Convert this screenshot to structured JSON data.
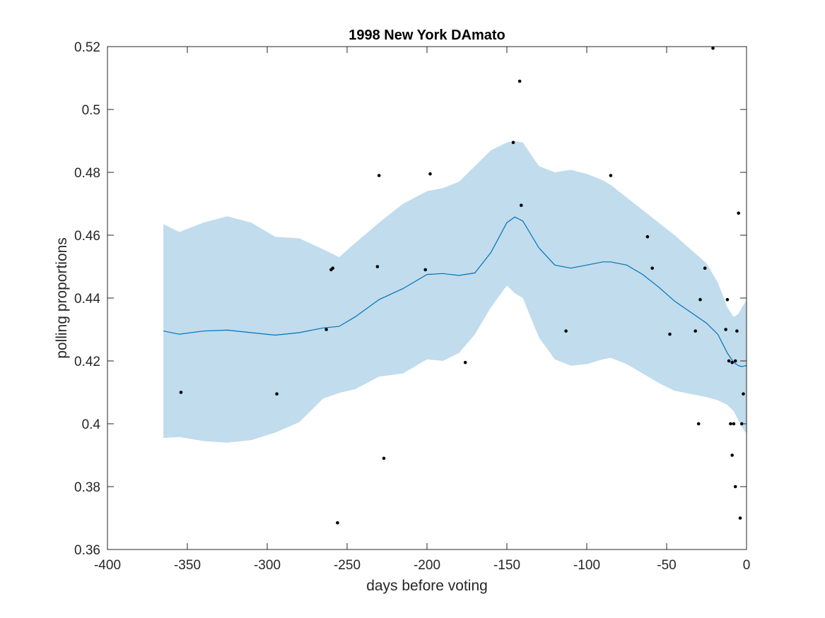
{
  "chart_data": {
    "type": "line",
    "title": "1998 New York DAmato",
    "xlabel": "days before voting",
    "ylabel": "polling proportions",
    "xlim": [
      -400,
      0
    ],
    "ylim": [
      0.36,
      0.52
    ],
    "xticks": [
      -400,
      -350,
      -300,
      -250,
      -200,
      -150,
      -100,
      -50,
      0
    ],
    "xtick_labels": [
      "-400",
      "-350",
      "-300",
      "-250",
      "-200",
      "-150",
      "-100",
      "-50",
      "0"
    ],
    "yticks": [
      0.36,
      0.38,
      0.4,
      0.42,
      0.44,
      0.46,
      0.48,
      0.5,
      0.52
    ],
    "ytick_labels": [
      "0.36",
      "0.38",
      "0.4",
      "0.42",
      "0.44",
      "0.46",
      "0.48",
      "0.5",
      "0.52"
    ],
    "grid": false,
    "colors": {
      "line": "#0072bd",
      "band": "#c1dcec",
      "points": "#000000",
      "axes": "#262626"
    },
    "trend": {
      "x": [
        -365,
        -355,
        -340,
        -325,
        -310,
        -295,
        -280,
        -265,
        -255,
        -245,
        -230,
        -215,
        -200,
        -190,
        -180,
        -170,
        -160,
        -150,
        -145,
        -140,
        -130,
        -120,
        -110,
        -100,
        -90,
        -85,
        -75,
        -65,
        -55,
        -45,
        -35,
        -25,
        -18,
        -12,
        -8,
        -5,
        -3,
        -1,
        0
      ],
      "y": [
        0.4295,
        0.4285,
        0.4295,
        0.4298,
        0.429,
        0.4282,
        0.429,
        0.4305,
        0.431,
        0.434,
        0.4395,
        0.443,
        0.4475,
        0.4478,
        0.4472,
        0.448,
        0.4545,
        0.464,
        0.4658,
        0.4645,
        0.456,
        0.4505,
        0.4495,
        0.4505,
        0.4515,
        0.4515,
        0.4505,
        0.4475,
        0.4435,
        0.439,
        0.4355,
        0.432,
        0.4285,
        0.4225,
        0.4195,
        0.4185,
        0.4182,
        0.4184,
        0.4186
      ]
    },
    "band": {
      "x": [
        -365,
        -355,
        -340,
        -325,
        -310,
        -295,
        -280,
        -265,
        -255,
        -245,
        -230,
        -215,
        -200,
        -190,
        -180,
        -170,
        -160,
        -150,
        -145,
        -140,
        -130,
        -120,
        -110,
        -100,
        -90,
        -85,
        -75,
        -65,
        -55,
        -45,
        -35,
        -25,
        -18,
        -12,
        -8,
        -5,
        -3,
        -1,
        0
      ],
      "upper": [
        0.4635,
        0.461,
        0.464,
        0.466,
        0.464,
        0.4595,
        0.459,
        0.4555,
        0.453,
        0.4575,
        0.464,
        0.47,
        0.474,
        0.475,
        0.477,
        0.482,
        0.487,
        0.4895,
        0.49,
        0.4895,
        0.482,
        0.48,
        0.4808,
        0.4795,
        0.4775,
        0.476,
        0.472,
        0.468,
        0.464,
        0.46,
        0.4555,
        0.451,
        0.445,
        0.437,
        0.434,
        0.435,
        0.437,
        0.4385,
        0.4395
      ],
      "lower": [
        0.3955,
        0.3958,
        0.3945,
        0.394,
        0.3948,
        0.3972,
        0.4005,
        0.408,
        0.4098,
        0.411,
        0.415,
        0.416,
        0.4205,
        0.42,
        0.4225,
        0.4285,
        0.437,
        0.444,
        0.4415,
        0.44,
        0.4275,
        0.4205,
        0.4185,
        0.419,
        0.4205,
        0.421,
        0.419,
        0.416,
        0.413,
        0.4105,
        0.4095,
        0.4085,
        0.4075,
        0.406,
        0.404,
        0.401,
        0.399,
        0.3975,
        0.397
      ]
    },
    "points": {
      "x": [
        -354,
        -294,
        -263,
        -260,
        -259,
        -256,
        -231,
        -230,
        -227,
        -201,
        -198,
        -176,
        -146,
        -142,
        -141,
        -113,
        -85,
        -62,
        -59,
        -48,
        -32,
        -30,
        -29,
        -26,
        -21,
        -13,
        -12,
        -11,
        -10,
        -9,
        -9,
        -8,
        -7,
        -7,
        -6,
        -5,
        -4,
        -3,
        -2
      ],
      "y": [
        0.41,
        0.4095,
        0.43,
        0.449,
        0.4495,
        0.3685,
        0.45,
        0.479,
        0.389,
        0.449,
        0.4795,
        0.4195,
        0.4895,
        0.509,
        0.4695,
        0.4295,
        0.479,
        0.4595,
        0.4495,
        0.4285,
        0.4295,
        0.4,
        0.4395,
        0.4495,
        0.5195,
        0.43,
        0.4395,
        0.42,
        0.4,
        0.4195,
        0.39,
        0.4,
        0.42,
        0.38,
        0.4295,
        0.467,
        0.37,
        0.4,
        0.4095
      ]
    }
  }
}
